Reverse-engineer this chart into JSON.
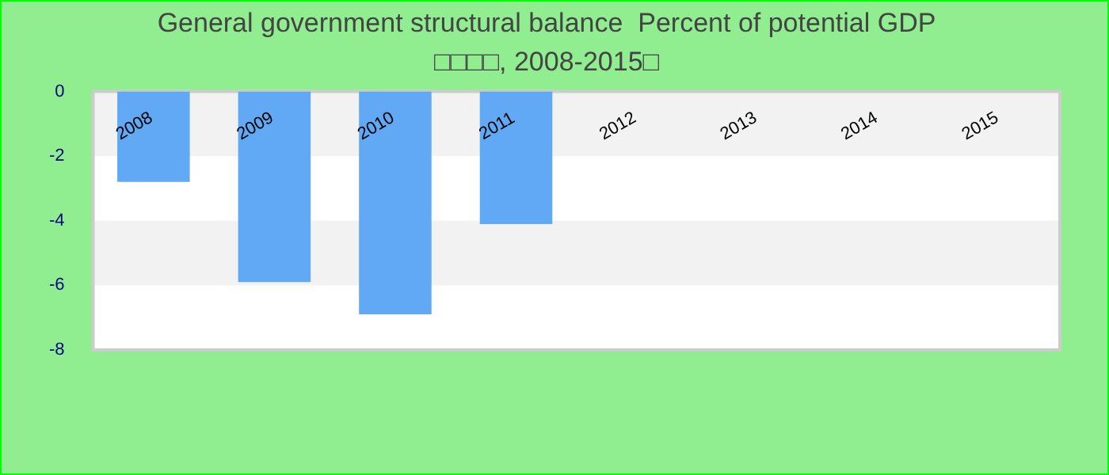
{
  "chart_data": {
    "type": "bar",
    "title": "General government structural balance  Percent of potential GDP",
    "subtitle": "□□□□, 2008-2015□",
    "categories": [
      "2008",
      "2009",
      "2010",
      "2011",
      "2012",
      "2013",
      "2014",
      "2015"
    ],
    "values": [
      -2.8,
      -5.9,
      -6.9,
      -4.1,
      null,
      null,
      null,
      null
    ],
    "color": "#61a8f5",
    "ylim": [
      -8,
      0
    ],
    "yticks": [
      -8,
      -6,
      -4,
      -2,
      0
    ],
    "bands": [
      {
        "axis": "y",
        "from": -2,
        "to": 0,
        "color": "#f2f2f2"
      },
      {
        "axis": "y",
        "from": -6,
        "to": -4,
        "color": "#f2f2f2"
      }
    ],
    "legend": false
  }
}
